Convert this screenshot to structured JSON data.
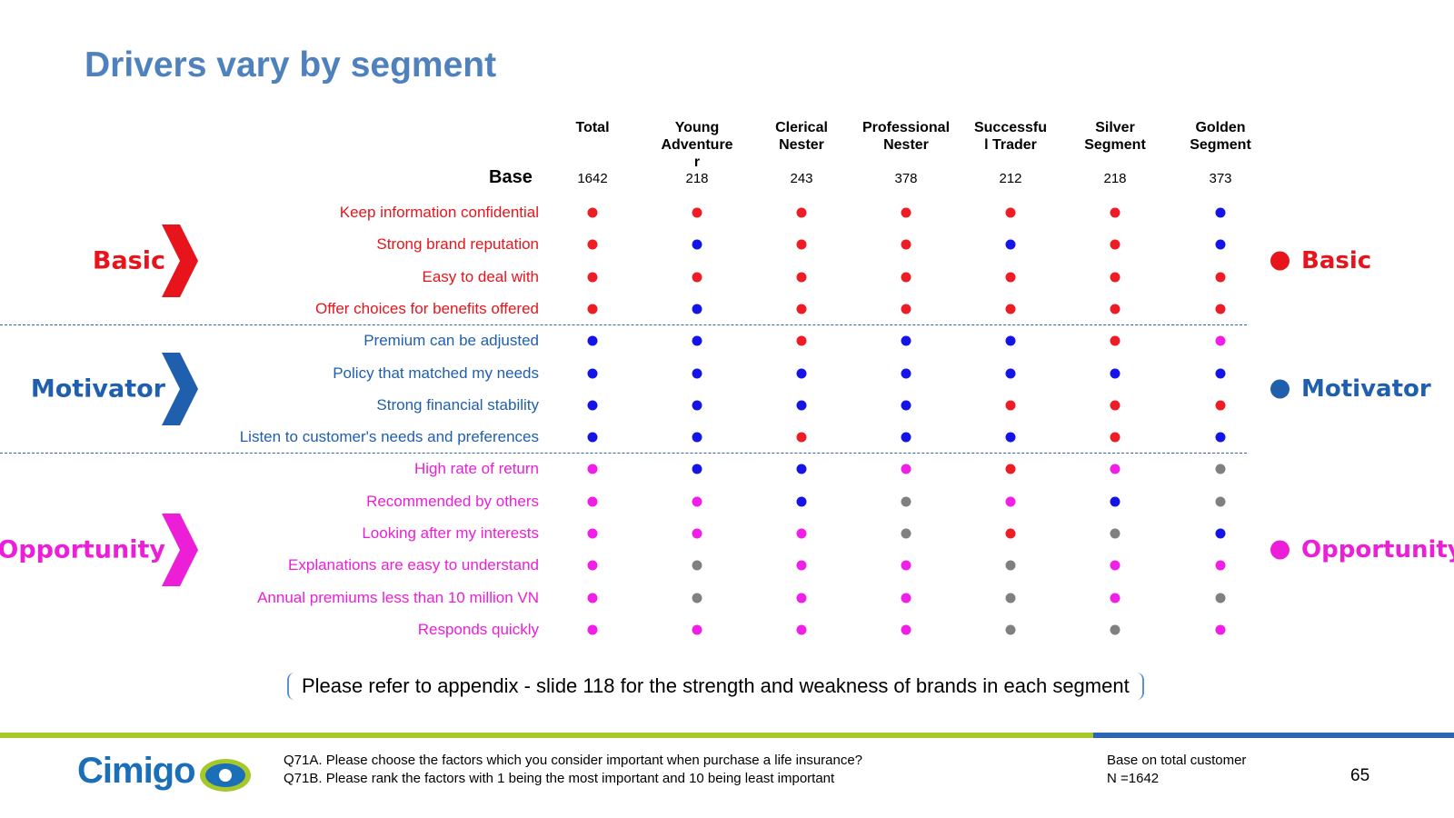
{
  "title": "Drivers vary by segment",
  "columns": [
    "Total",
    "Young\nAdventure\nr",
    "Clerical\nNester",
    "Professional\nNester",
    "Successfu\nl Trader",
    "Silver\nSegment",
    "Golden\nSegment"
  ],
  "base_label": "Base",
  "bases": [
    1642,
    218,
    243,
    378,
    212,
    218,
    373
  ],
  "groups": [
    {
      "name": "Basic",
      "color": "#e8141c",
      "rows": [
        {
          "label": "Keep information confidential",
          "dots": [
            "#ee1c24",
            "#ee1c24",
            "#ee1c24",
            "#ee1c24",
            "#ee1c24",
            "#ee1c24",
            "#1414e6"
          ]
        },
        {
          "label": "Strong brand reputation",
          "dots": [
            "#ee1c24",
            "#1414e6",
            "#ee1c24",
            "#ee1c24",
            "#1414e6",
            "#ee1c24",
            "#1414e6"
          ]
        },
        {
          "label": "Easy to deal with",
          "dots": [
            "#ee1c24",
            "#ee1c24",
            "#ee1c24",
            "#ee1c24",
            "#ee1c24",
            "#ee1c24",
            "#ee1c24"
          ]
        },
        {
          "label": "Offer choices for benefits offered",
          "dots": [
            "#ee1c24",
            "#1414e6",
            "#ee1c24",
            "#ee1c24",
            "#ee1c24",
            "#ee1c24",
            "#ee1c24"
          ]
        }
      ]
    },
    {
      "name": "Motivator",
      "color": "#1f5fad",
      "rows": [
        {
          "label": "Premium can be adjusted",
          "dots": [
            "#1414e6",
            "#1414e6",
            "#ee1c24",
            "#1414e6",
            "#1414e6",
            "#ee1c24",
            "#f01ee6"
          ]
        },
        {
          "label": "Policy that matched my needs",
          "dots": [
            "#1414e6",
            "#1414e6",
            "#1414e6",
            "#1414e6",
            "#1414e6",
            "#1414e6",
            "#1414e6"
          ]
        },
        {
          "label": "Strong financial stability",
          "dots": [
            "#1414e6",
            "#1414e6",
            "#1414e6",
            "#1414e6",
            "#ee1c24",
            "#ee1c24",
            "#ee1c24"
          ]
        },
        {
          "label": "Listen to customer's needs and preferences",
          "dots": [
            "#1414e6",
            "#1414e6",
            "#ee1c24",
            "#1414e6",
            "#1414e6",
            "#ee1c24",
            "#1414e6"
          ]
        }
      ]
    },
    {
      "name": "Opportunity",
      "color": "#ec1ed8",
      "rows": [
        {
          "label": "High rate of return",
          "dots": [
            "#f01ee6",
            "#1414e6",
            "#1414e6",
            "#f01ee6",
            "#ee1c24",
            "#f01ee6",
            "#808080"
          ]
        },
        {
          "label": "Recommended by others",
          "dots": [
            "#f01ee6",
            "#f01ee6",
            "#1414e6",
            "#808080",
            "#f01ee6",
            "#1414e6",
            "#808080"
          ]
        },
        {
          "label": "Looking after my interests",
          "dots": [
            "#f01ee6",
            "#f01ee6",
            "#f01ee6",
            "#808080",
            "#ee1c24",
            "#808080",
            "#1414e6"
          ]
        },
        {
          "label": "Explanations are easy to understand",
          "dots": [
            "#f01ee6",
            "#808080",
            "#f01ee6",
            "#f01ee6",
            "#808080",
            "#f01ee6",
            "#f01ee6"
          ]
        },
        {
          "label": "Annual premiums less than 10 million VN",
          "dots": [
            "#f01ee6",
            "#808080",
            "#f01ee6",
            "#f01ee6",
            "#808080",
            "#f01ee6",
            "#808080"
          ]
        },
        {
          "label": "Responds quickly",
          "dots": [
            "#f01ee6",
            "#f01ee6",
            "#f01ee6",
            "#f01ee6",
            "#808080",
            "#808080",
            "#f01ee6"
          ]
        }
      ]
    }
  ],
  "note": "Please refer to appendix - slide 118 for the strength and weakness of brands in each segment",
  "footer": {
    "logo": "Cimigo",
    "question_a": "Q71A. Please choose the factors which you consider important when purchase a life insurance?",
    "question_b": "Q71B. Please rank the factors with 1 being the most important and 10 being least important",
    "base_note": "Base on total customer",
    "n_note": "N =1642",
    "page": "65"
  }
}
